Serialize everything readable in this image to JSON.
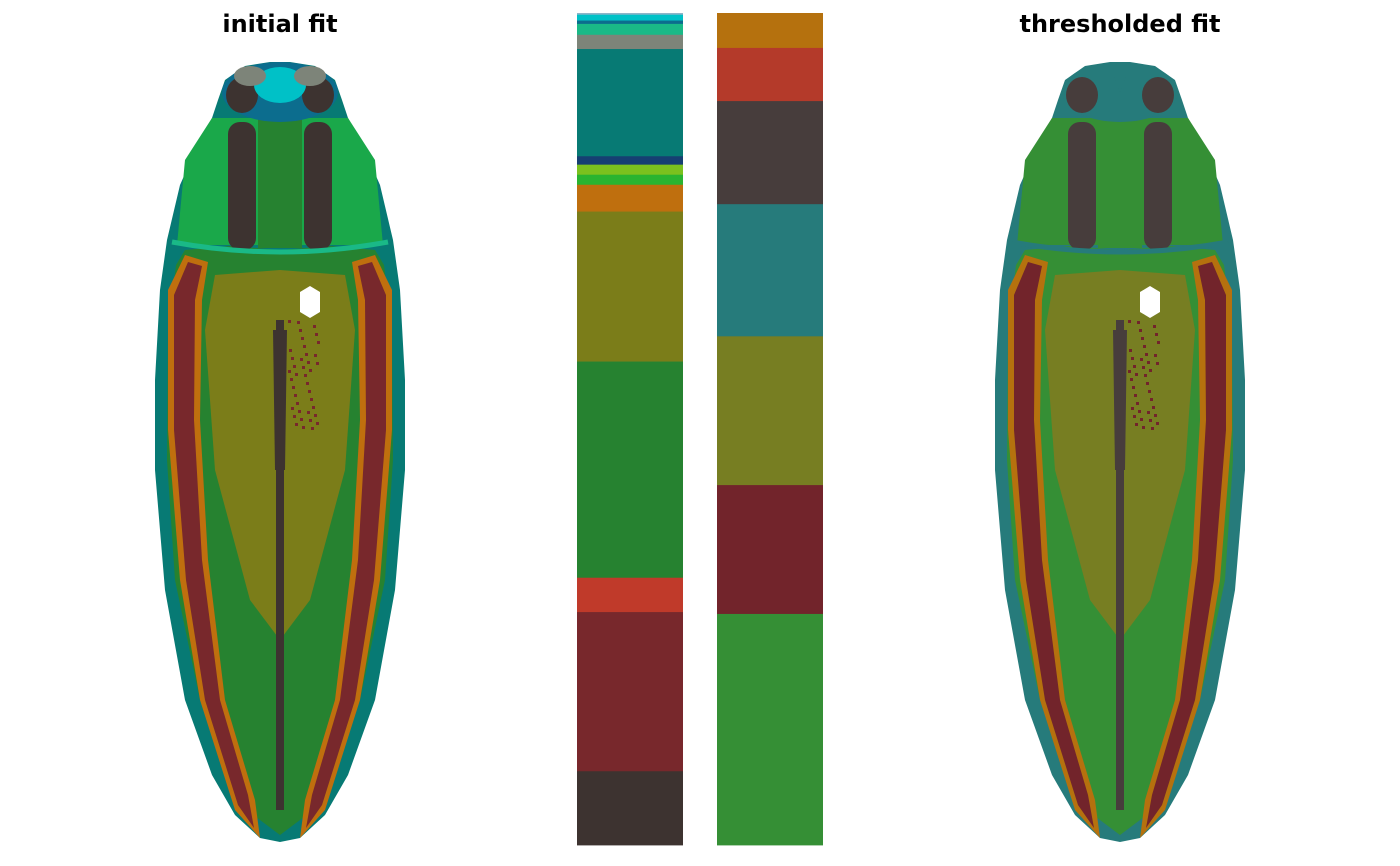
{
  "panels": {
    "left_title": "initial fit",
    "right_title": "thresholded fit"
  },
  "chart_data": [
    {
      "type": "image",
      "title": "initial fit",
      "subject": "beetle-color-segmentation",
      "palette": [
        "#3d3330",
        "#7a2a2e",
        "#268230",
        "#7b7d19",
        "#077a74",
        "#b9410a",
        "#c33a27",
        "#0d8a72",
        "#1ab987"
      ]
    },
    {
      "type": "bar",
      "orientation": "stacked-vertical",
      "title": "",
      "segments": [
        {
          "color": "#8fb4c8",
          "value": 0.2
        },
        {
          "color": "#00c1c7",
          "value": 0.7
        },
        {
          "color": "#0c6d8e",
          "value": 0.4
        },
        {
          "color": "#1ab987",
          "value": 1.3
        },
        {
          "color": "#7d8479",
          "value": 1.7
        },
        {
          "color": "#077a74",
          "value": 12.8
        },
        {
          "color": "#163f72",
          "value": 1.0
        },
        {
          "color": "#7bc11e",
          "value": 1.2
        },
        {
          "color": "#2ab430",
          "value": 1.2
        },
        {
          "color": "#bf6f0e",
          "value": 3.2
        },
        {
          "color": "#7b7d19",
          "value": 17.9
        },
        {
          "color": "#268230",
          "value": 25.8
        },
        {
          "color": "#c03a2a",
          "value": 4.1
        },
        {
          "color": "#78282c",
          "value": 19.0
        },
        {
          "color": "#3d3330",
          "value": 8.8
        }
      ]
    },
    {
      "type": "bar",
      "orientation": "stacked-vertical",
      "title": "",
      "segments": [
        {
          "color": "#b5710e",
          "value": 4.2
        },
        {
          "color": "#b43a2a",
          "value": 6.4
        },
        {
          "color": "#473d3c",
          "value": 12.4
        },
        {
          "color": "#267b7b",
          "value": 15.9
        },
        {
          "color": "#777e22",
          "value": 17.9
        },
        {
          "color": "#72242b",
          "value": 15.5
        },
        {
          "color": "#358f35",
          "value": 27.8
        }
      ]
    },
    {
      "type": "image",
      "title": "thresholded fit",
      "subject": "beetle-color-segmentation",
      "palette": [
        "#473d3c",
        "#72242b",
        "#358f35",
        "#777e22",
        "#267b7b",
        "#b5710e",
        "#b43a2a"
      ]
    }
  ]
}
